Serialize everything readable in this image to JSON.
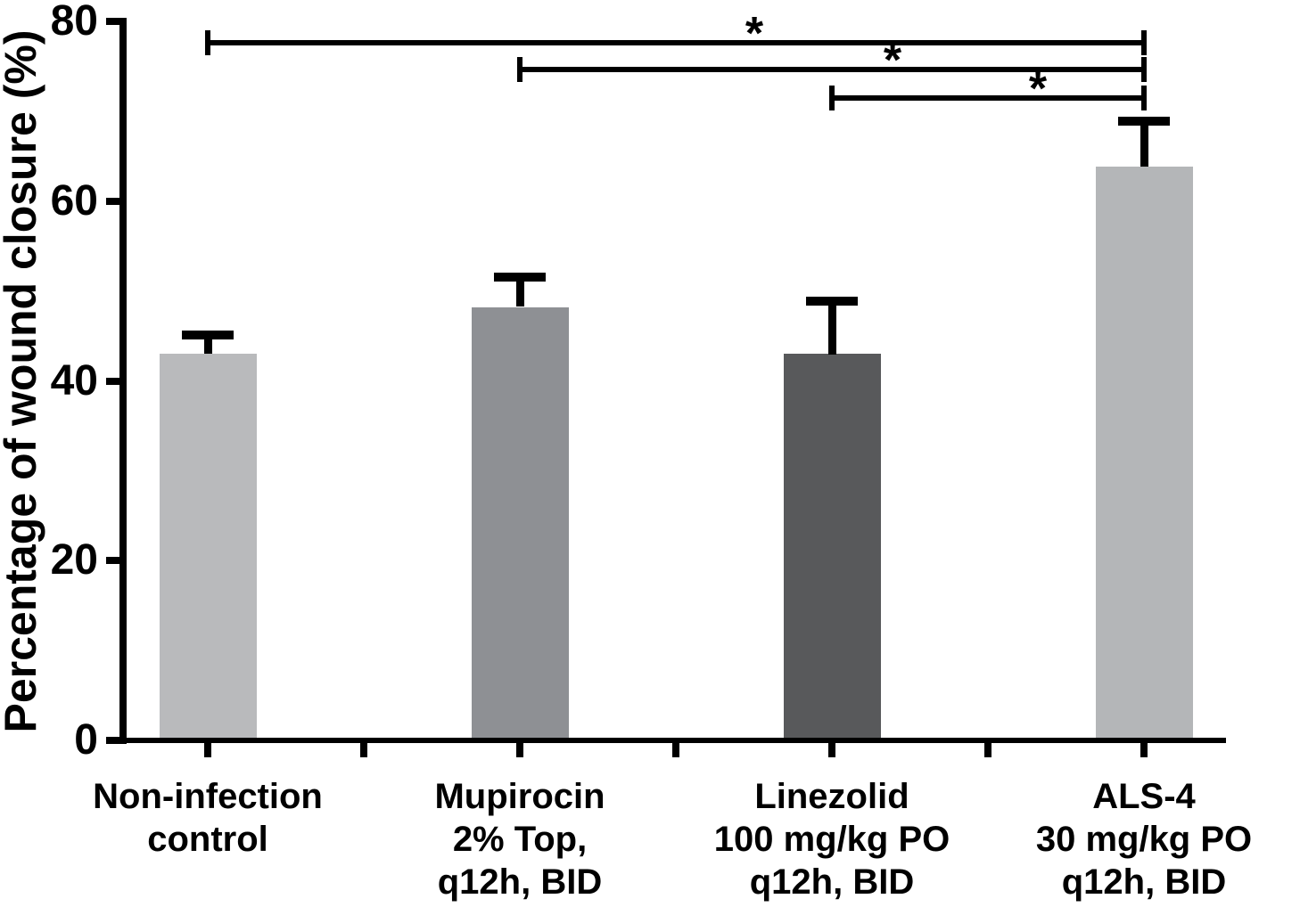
{
  "figure": {
    "background": "#ffffff",
    "axis_color": "#000000",
    "text_color": "#000000"
  },
  "chart_data": {
    "type": "bar",
    "title": "",
    "ylabel": "Percentage of wound closure (%)",
    "xlabel": "",
    "ylim": [
      0,
      80
    ],
    "yticks": [
      0,
      20,
      40,
      60,
      80
    ],
    "grid": false,
    "legend": false,
    "error_bars": "upper-only",
    "categories": [
      {
        "lines": [
          "Non-infection",
          "control"
        ]
      },
      {
        "lines": [
          "Mupirocin",
          "2% Top,",
          "q12h, BID"
        ]
      },
      {
        "lines": [
          "Linezolid",
          "100 mg/kg PO",
          "q12h, BID"
        ]
      },
      {
        "lines": [
          "ALS-4",
          "30 mg/kg PO",
          "q12h, BID"
        ]
      }
    ],
    "series": [
      {
        "name": "Percentage of wound closure",
        "values": [
          43.0,
          48.2,
          43.0,
          63.8
        ],
        "error_upper": [
          2.6,
          3.8,
          6.4,
          5.6
        ]
      }
    ],
    "bar_colors": [
      "#b9babc",
      "#8e9094",
      "#58595b",
      "#b4b6b8"
    ],
    "significance": [
      {
        "from_index": 0,
        "to_index": 3,
        "label": "*"
      },
      {
        "from_index": 1,
        "to_index": 3,
        "label": "*"
      },
      {
        "from_index": 2,
        "to_index": 3,
        "label": "*"
      }
    ]
  }
}
